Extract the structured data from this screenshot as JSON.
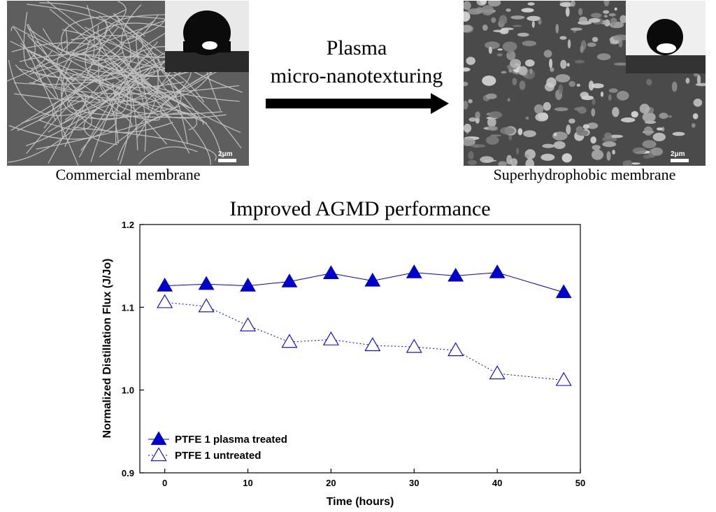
{
  "top_panel": {
    "left_caption": "Commercial membrane",
    "right_caption": "Superhydrophobic membrane",
    "process_line1": "Plasma",
    "process_line2": "micro-nanotexturing",
    "left_scale_label": "2μm",
    "right_scale_label": "2μm"
  },
  "colors": {
    "series": "#0000cc",
    "arrow": "#000000"
  },
  "chart_data": {
    "type": "line",
    "title": "Improved AGMD performance",
    "xlabel": "Time (hours)",
    "ylabel": "Normalized Distillation Flux (J/Jo)",
    "xlim": [
      -3,
      50
    ],
    "ylim": [
      0.9,
      1.2
    ],
    "x_ticks": [
      0,
      10,
      20,
      30,
      40,
      50
    ],
    "y_ticks": [
      0.9,
      1.0,
      1.1,
      1.2
    ],
    "y_tick_labels": [
      "0.9",
      "1.0",
      "1.1",
      "1.2"
    ],
    "legend_position": "bottom-left",
    "series": [
      {
        "name": "PTFE 1 plasma treated",
        "marker": "filled-triangle",
        "line": "solid",
        "x": [
          0,
          5,
          10,
          15,
          20,
          25,
          30,
          35,
          40,
          48
        ],
        "y": [
          1.126,
          1.128,
          1.126,
          1.131,
          1.141,
          1.132,
          1.142,
          1.138,
          1.142,
          1.118
        ]
      },
      {
        "name": "PTFE 1 untreated",
        "marker": "open-triangle",
        "line": "dotted",
        "x": [
          0,
          5,
          10,
          15,
          20,
          25,
          30,
          35,
          40,
          48
        ],
        "y": [
          1.106,
          1.101,
          1.078,
          1.058,
          1.061,
          1.054,
          1.052,
          1.048,
          1.02,
          1.012
        ]
      }
    ]
  }
}
